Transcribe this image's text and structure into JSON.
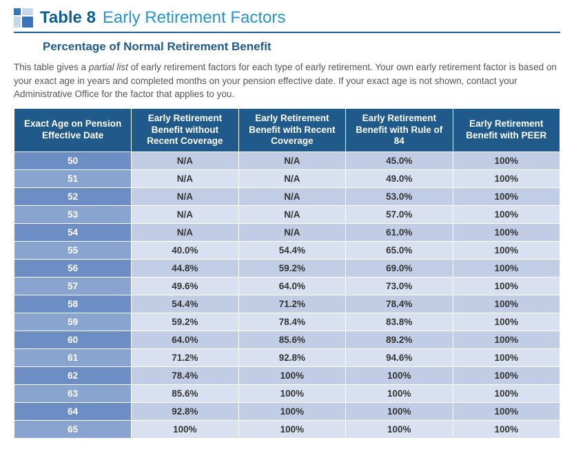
{
  "header": {
    "table_label": "Table 8",
    "table_title": "Early Retirement Factors",
    "subtitle": "Percentage of Normal Retirement Benefit"
  },
  "intro": {
    "pre": "This table gives a ",
    "em": "partial list",
    "post": " of early retirement factors for each type of early retirement. Your own early retirement factor is based on your exact age in years and completed months on your pension effective date. If your exact age is not shown, contact your Administrative Office for the factor that applies to you."
  },
  "columns": [
    "Exact Age on Pension Effective Date",
    "Early Retirement Benefit without Recent Coverage",
    "Early Retirement Benefit with Recent Coverage",
    "Early Retirement Benefit with Rule of 84",
    "Early Retirement Benefit with PEER"
  ],
  "rows": [
    {
      "age": "50",
      "c1": "N/A",
      "c2": "N/A",
      "c3": "45.0%",
      "c4": "100%"
    },
    {
      "age": "51",
      "c1": "N/A",
      "c2": "N/A",
      "c3": "49.0%",
      "c4": "100%"
    },
    {
      "age": "52",
      "c1": "N/A",
      "c2": "N/A",
      "c3": "53.0%",
      "c4": "100%"
    },
    {
      "age": "53",
      "c1": "N/A",
      "c2": "N/A",
      "c3": "57.0%",
      "c4": "100%"
    },
    {
      "age": "54",
      "c1": "N/A",
      "c2": "N/A",
      "c3": "61.0%",
      "c4": "100%"
    },
    {
      "age": "55",
      "c1": "40.0%",
      "c2": "54.4%",
      "c3": "65.0%",
      "c4": "100%"
    },
    {
      "age": "56",
      "c1": "44.8%",
      "c2": "59.2%",
      "c3": "69.0%",
      "c4": "100%"
    },
    {
      "age": "57",
      "c1": "49.6%",
      "c2": "64.0%",
      "c3": "73.0%",
      "c4": "100%"
    },
    {
      "age": "58",
      "c1": "54.4%",
      "c2": "71.2%",
      "c3": "78.4%",
      "c4": "100%"
    },
    {
      "age": "59",
      "c1": "59.2%",
      "c2": "78.4%",
      "c3": "83.8%",
      "c4": "100%"
    },
    {
      "age": "60",
      "c1": "64.0%",
      "c2": "85.6%",
      "c3": "89.2%",
      "c4": "100%"
    },
    {
      "age": "61",
      "c1": "71.2%",
      "c2": "92.8%",
      "c3": "94.6%",
      "c4": "100%"
    },
    {
      "age": "62",
      "c1": "78.4%",
      "c2": "100%",
      "c3": "100%",
      "c4": "100%"
    },
    {
      "age": "63",
      "c1": "85.6%",
      "c2": "100%",
      "c3": "100%",
      "c4": "100%"
    },
    {
      "age": "64",
      "c1": "92.8%",
      "c2": "100%",
      "c3": "100%",
      "c4": "100%"
    },
    {
      "age": "65",
      "c1": "100%",
      "c2": "100%",
      "c3": "100%",
      "c4": "100%"
    }
  ],
  "style": {
    "header_bg": "#1f5a8a",
    "row_odd_bg": "#c0cde4",
    "row_even_bg": "#d9e1f0",
    "age_odd_bg": "#6d8ec4",
    "age_even_bg": "#8aa4d0",
    "title_color": "#2a95c5",
    "label_color": "#0b5f8a"
  }
}
